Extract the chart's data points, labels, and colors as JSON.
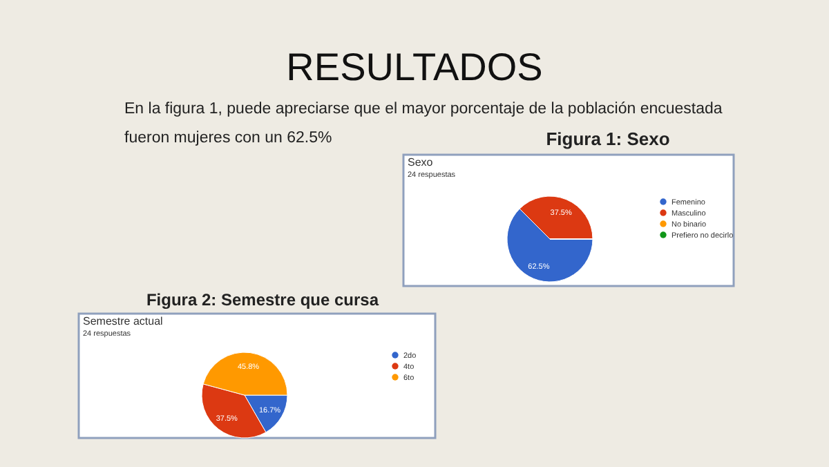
{
  "chart_data": [
    {
      "type": "pie",
      "title": "Sexo",
      "subtitle": "24 respuestas",
      "categories": [
        "Femenino",
        "Masculino",
        "No binario",
        "Prefiero no decirlo"
      ],
      "values": [
        62.5,
        37.5,
        0,
        0
      ],
      "value_labels": [
        "62.5%",
        "37.5%",
        null,
        null
      ],
      "colors": [
        "#3366cc",
        "#dc3912",
        "#ff9900",
        "#109618"
      ],
      "legend": "right",
      "annotations": [
        "RESULTADOS",
        "En la figura 1, puede apreciarse que el mayor porcentaje de la población encuestada fueron mujeres con un 62.5%",
        "Figura 1: Sexo"
      ]
    },
    {
      "type": "pie",
      "title": "Semestre actual",
      "subtitle": "24 respuestas",
      "categories": [
        "2do",
        "4to",
        "6to"
      ],
      "values": [
        16.7,
        37.5,
        45.8
      ],
      "value_labels": [
        "16.7%",
        "37.5%",
        "45.8%"
      ],
      "colors": [
        "#3366cc",
        "#dc3912",
        "#ff9900"
      ],
      "legend": "right",
      "annotations": [
        "Figura 2: Semestre que cursa"
      ]
    }
  ]
}
